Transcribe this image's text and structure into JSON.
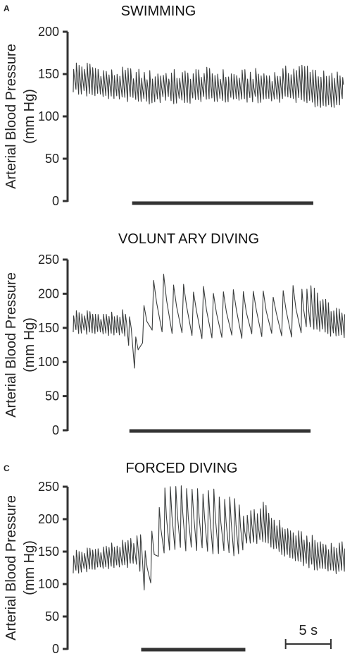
{
  "chart_data": [
    {
      "type": "line",
      "panel_letter": "A",
      "title": "SWIMMING",
      "ylabel_line1": "Arterial Blood Pressure",
      "ylabel_line2": "(mm Hg)",
      "ylim": [
        0,
        200
      ],
      "yticks": [
        0,
        50,
        100,
        150,
        200
      ],
      "ytick_labels": [
        "0",
        "50",
        "100",
        "150",
        "200"
      ],
      "xlim": [
        0,
        30
      ],
      "x_units": "s",
      "event_bar": [
        6.5,
        26.5
      ],
      "beat_period_s": 0.3,
      "series": [
        {
          "x": [
            0,
            2,
            4,
            6,
            8,
            10,
            12,
            14,
            16,
            18,
            20,
            22,
            24,
            26,
            28,
            30
          ],
          "systolic": [
            160,
            158,
            150,
            152,
            148,
            150,
            148,
            152,
            150,
            148,
            150,
            148,
            155,
            158,
            145,
            150
          ],
          "diastolic": [
            130,
            125,
            122,
            120,
            118,
            120,
            118,
            120,
            120,
            118,
            120,
            118,
            122,
            115,
            112,
            118
          ]
        }
      ]
    },
    {
      "type": "line",
      "panel_letter": "",
      "title": "VOLUNT ARY DIVING",
      "ylabel_line1": "Arterial Blood Pressure",
      "ylabel_line2": "(mm Hg)",
      "ylim": [
        0,
        250
      ],
      "yticks": [
        0,
        50,
        100,
        150,
        200,
        250
      ],
      "ytick_labels": [
        "0",
        "50",
        "100",
        "150",
        "200",
        "250"
      ],
      "xlim": [
        0,
        30
      ],
      "x_units": "s",
      "event_bar": [
        6.2,
        26.2
      ],
      "series": [
        {
          "x": [
            0,
            2,
            4,
            5.5,
            6.2,
            6.8,
            7.2,
            8,
            9,
            10,
            12,
            14,
            16,
            18,
            20,
            22,
            24,
            25,
            26,
            27,
            28,
            29,
            30
          ],
          "systolic": [
            172,
            170,
            168,
            170,
            160,
            130,
            175,
            200,
            225,
            222,
            210,
            205,
            205,
            205,
            205,
            200,
            205,
            210,
            210,
            198,
            185,
            172,
            172
          ],
          "diastolic": [
            145,
            142,
            140,
            140,
            125,
            85,
            95,
            148,
            145,
            145,
            140,
            138,
            138,
            138,
            138,
            138,
            140,
            145,
            150,
            150,
            142,
            138,
            138
          ],
          "beat_period_s": [
            0.3,
            0.3,
            0.3,
            0.3,
            0.7,
            0.9,
            1.0,
            1.1,
            1.1,
            1.1,
            1.1,
            1.1,
            1.1,
            1.1,
            1.1,
            1.1,
            1.1,
            0.6,
            0.4,
            0.3,
            0.3,
            0.3,
            0.3
          ]
        }
      ]
    },
    {
      "type": "line",
      "panel_letter": "C",
      "title": "FORCED DIVING",
      "ylabel_line1": "Arterial Blood Pressure",
      "ylabel_line2": "(mm Hg)",
      "ylim": [
        0,
        250
      ],
      "yticks": [
        0,
        50,
        100,
        150,
        200,
        250
      ],
      "ytick_labels": [
        "0",
        "50",
        "100",
        "150",
        "200",
        "250"
      ],
      "xlim": [
        0,
        30
      ],
      "x_units": "s",
      "event_bar": [
        7.5,
        19.0
      ],
      "scale_bar_s": 5,
      "scale_bar_label": "5 s",
      "series": [
        {
          "x": [
            0,
            2,
            4,
            6,
            7.2,
            8,
            8.6,
            9.5,
            10.5,
            12,
            14,
            16,
            18,
            19,
            20,
            21,
            22,
            24,
            26,
            28,
            30
          ],
          "systolic": [
            148,
            152,
            158,
            162,
            175,
            150,
            180,
            228,
            255,
            250,
            245,
            238,
            225,
            205,
            212,
            220,
            200,
            180,
            170,
            160,
            158
          ],
          "diastolic": [
            118,
            122,
            125,
            128,
            130,
            82,
            100,
            148,
            155,
            155,
            152,
            150,
            145,
            160,
            165,
            165,
            158,
            138,
            128,
            120,
            118
          ],
          "beat_period_s": [
            0.3,
            0.3,
            0.3,
            0.3,
            0.4,
            0.8,
            0.85,
            0.6,
            0.6,
            0.6,
            0.6,
            0.6,
            0.5,
            0.4,
            0.35,
            0.3,
            0.3,
            0.3,
            0.3,
            0.3,
            0.3
          ]
        }
      ]
    }
  ]
}
